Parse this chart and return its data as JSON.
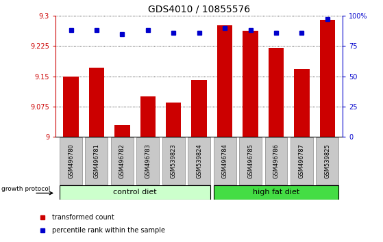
{
  "title": "GDS4010 / 10855576",
  "samples": [
    "GSM496780",
    "GSM496781",
    "GSM496782",
    "GSM496783",
    "GSM539823",
    "GSM539824",
    "GSM496784",
    "GSM496785",
    "GSM496786",
    "GSM496787",
    "GSM539825"
  ],
  "bar_values": [
    9.15,
    9.172,
    9.028,
    9.1,
    9.085,
    9.14,
    9.276,
    9.262,
    9.22,
    9.168,
    9.29
  ],
  "percentile_values": [
    88,
    88,
    85,
    88,
    86,
    86,
    90,
    88,
    86,
    86,
    97
  ],
  "bar_color": "#cc0000",
  "percentile_color": "#0000cc",
  "ymin": 9.0,
  "ymax": 9.3,
  "yticks": [
    9.0,
    9.075,
    9.15,
    9.225,
    9.3
  ],
  "ytick_labels": [
    "9",
    "9.075",
    "9.15",
    "9.225",
    "9.3"
  ],
  "right_yticks": [
    0,
    25,
    50,
    75,
    100
  ],
  "right_ytick_labels": [
    "0",
    "25",
    "50",
    "75",
    "100%"
  ],
  "control_diet_label": "control diet",
  "high_fat_diet_label": "high fat diet",
  "growth_protocol_label": "growth protocol",
  "legend_bar_label": "transformed count",
  "legend_dot_label": "percentile rank within the sample",
  "control_color": "#ccffcc",
  "high_fat_color": "#44dd44",
  "tick_label_bg": "#c8c8c8",
  "title_fontsize": 10
}
